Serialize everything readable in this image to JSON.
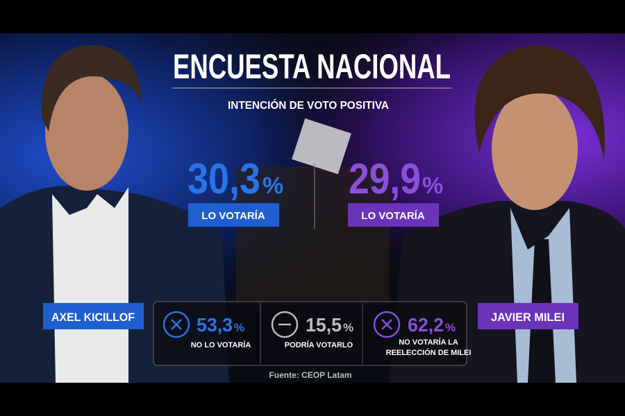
{
  "header": {
    "title": "ENCUESTA NACIONAL",
    "subtitle": "INTENCIÓN DE VOTO POSITIVA"
  },
  "candidates": [
    {
      "name": "AXEL KICILLOF",
      "value": "30,3",
      "unit": "%",
      "label": "LO VOTARÍA"
    },
    {
      "name": "JAVIER MILEI",
      "value": "29,9",
      "unit": "%",
      "label": "LO VOTARÍA"
    }
  ],
  "stats": [
    {
      "value": "53,3",
      "unit": "%",
      "label_lines": [
        "NO LO VOTARÍA"
      ]
    },
    {
      "value": "15,5",
      "unit": "%",
      "label_lines": [
        "PODRÍA VOTARLO"
      ]
    },
    {
      "value": "62,2",
      "unit": "%",
      "label_lines": [
        "NO VOTARÍA LA",
        "REELECCIÓN DE MILEI"
      ]
    }
  ],
  "source": "Fuente: CEOP Latam"
}
